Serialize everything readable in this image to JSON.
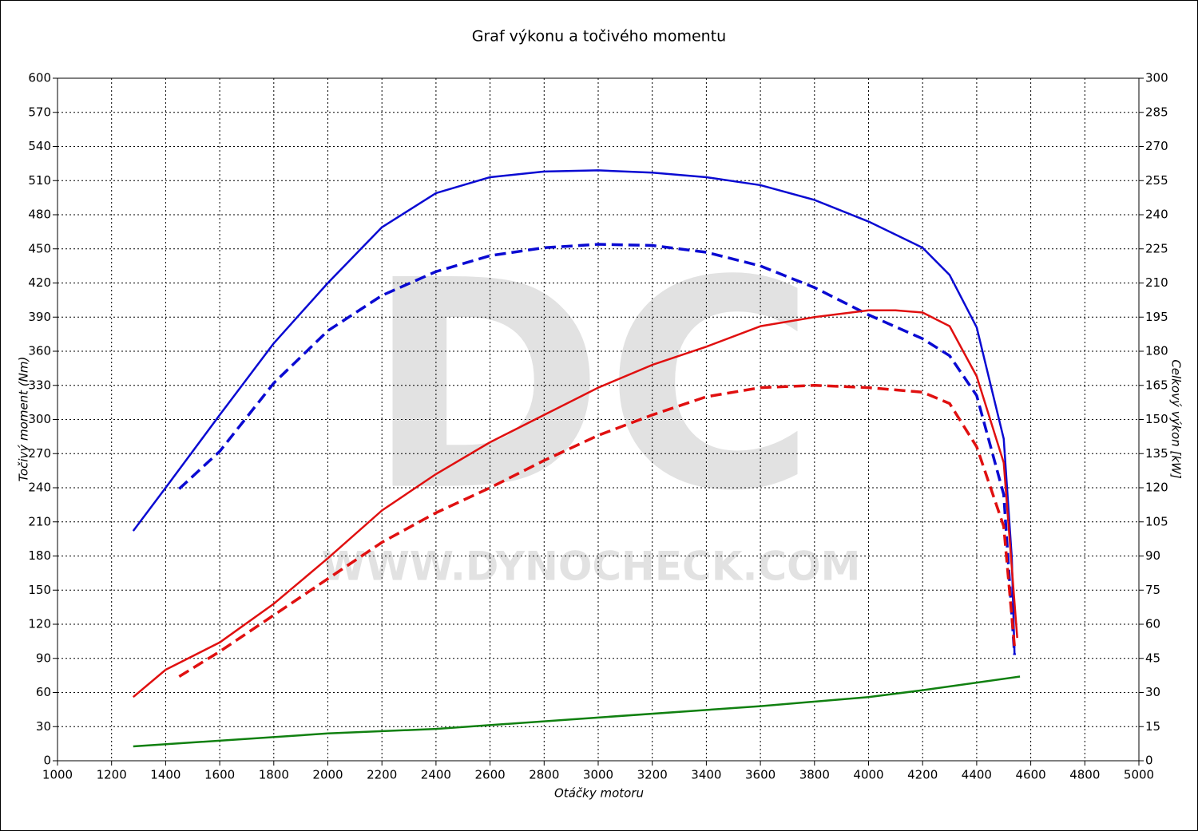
{
  "chart_data": {
    "type": "line",
    "title": "Graf výkonu a točivého momentu",
    "x_label": "Otáčky motoru",
    "y_label": "Točivý moment (Nm)",
    "y2_label": "Celkový výkon [kW]",
    "watermark": "DC",
    "watermark_url": "WWW.DYNOCHECK.COM",
    "xlim": [
      1000,
      5000
    ],
    "xticks": [
      1000,
      1200,
      1400,
      1600,
      1800,
      2000,
      2200,
      2400,
      2600,
      2800,
      3000,
      3200,
      3400,
      3600,
      3800,
      4000,
      4200,
      4400,
      4600,
      4800,
      5000
    ],
    "ylim": [
      0,
      600
    ],
    "yticks": [
      0,
      30,
      60,
      90,
      120,
      150,
      180,
      210,
      240,
      270,
      300,
      330,
      360,
      390,
      420,
      450,
      480,
      510,
      540,
      570,
      600
    ],
    "y2lim": [
      0,
      300
    ],
    "y2ticks": [
      0,
      15,
      30,
      45,
      60,
      75,
      90,
      105,
      120,
      135,
      150,
      165,
      180,
      195,
      210,
      225,
      240,
      255,
      270,
      285,
      300
    ],
    "grid": true,
    "series": [
      {
        "color": "#0a0ad2",
        "dash": false,
        "x": [
          1280,
          1400,
          1600,
          1800,
          2000,
          2200,
          2400,
          2600,
          2800,
          3000,
          3200,
          3400,
          3600,
          3800,
          4000,
          4200,
          4300,
          4400,
          4500,
          4530,
          4540
        ],
        "values": [
          202,
          240,
          304,
          367,
          420,
          469,
          499,
          513,
          518,
          519,
          517,
          513,
          506,
          493,
          474,
          451,
          427,
          381,
          283,
          178,
          93
        ]
      },
      {
        "color": "#0a0ad2",
        "dash": true,
        "x": [
          1450,
          1600,
          1800,
          2000,
          2200,
          2400,
          2600,
          2800,
          3000,
          3200,
          3400,
          3600,
          3800,
          4000,
          4200,
          4300,
          4400,
          4500,
          4540
        ],
        "values": [
          239,
          272,
          332,
          378,
          409,
          430,
          444,
          451,
          454,
          453,
          447,
          435,
          416,
          392,
          371,
          356,
          321,
          234,
          93
        ]
      },
      {
        "color": "#e01010",
        "dash": false,
        "axis": "y2",
        "x": [
          1280,
          1400,
          1600,
          1800,
          2000,
          2200,
          2400,
          2600,
          2800,
          3000,
          3200,
          3400,
          3600,
          3800,
          4000,
          4100,
          4200,
          4300,
          4400,
          4500,
          4550
        ],
        "values": [
          28,
          40,
          52,
          69,
          89,
          110,
          126,
          140,
          152,
          164,
          174,
          182,
          191,
          195,
          198,
          198,
          197,
          191,
          169,
          131,
          54
        ]
      },
      {
        "color": "#e01010",
        "dash": true,
        "axis": "y2",
        "x": [
          1450,
          1600,
          1800,
          2000,
          2200,
          2400,
          2600,
          2800,
          3000,
          3200,
          3400,
          3600,
          3800,
          4000,
          4200,
          4300,
          4400,
          4500,
          4540
        ],
        "values": [
          37,
          48,
          64,
          80,
          96,
          109,
          120,
          132,
          143,
          152,
          160,
          164,
          165,
          164,
          162,
          157,
          138,
          103,
          50
        ]
      },
      {
        "color": "#108010",
        "dash": false,
        "axis": "y2",
        "x": [
          1280,
          2000,
          2400,
          3000,
          3600,
          4000,
          4200,
          4560
        ],
        "values": [
          6.3,
          12,
          14,
          19,
          24,
          28,
          31,
          37
        ]
      }
    ]
  }
}
